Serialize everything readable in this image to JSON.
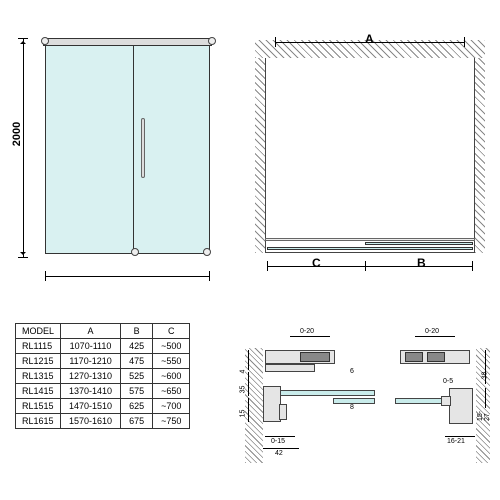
{
  "elevation": {
    "height_label": "2000"
  },
  "topview": {
    "dim_a": "A",
    "dim_b": "B",
    "dim_c": "C"
  },
  "table": {
    "headers": [
      "MODEL",
      "A",
      "B",
      "C"
    ],
    "rows": [
      [
        "RL1115",
        "1070-1110",
        "425",
        "~500"
      ],
      [
        "RL1215",
        "1170-1210",
        "475",
        "~550"
      ],
      [
        "RL1315",
        "1270-1310",
        "525",
        "~600"
      ],
      [
        "RL1415",
        "1370-1410",
        "575",
        "~650"
      ],
      [
        "RL1515",
        "1470-1510",
        "625",
        "~700"
      ],
      [
        "RL1615",
        "1570-1610",
        "675",
        "~750"
      ]
    ]
  },
  "details": {
    "d1": {
      "top_gap": "0-20",
      "v1": "4",
      "v2": "35",
      "v3": "15",
      "bot_gap": "0-15",
      "w": "42",
      "t1": "6",
      "t2": "8"
    },
    "d2": {
      "top_gap": "0-20",
      "mid_gap": "0-5",
      "h1": "15-27",
      "h2": "38",
      "w": "16-21"
    }
  },
  "colors": {
    "glass": "#c9eceb",
    "metal": "#e5e5e5",
    "line": "#000000",
    "hatch": "#888888"
  }
}
